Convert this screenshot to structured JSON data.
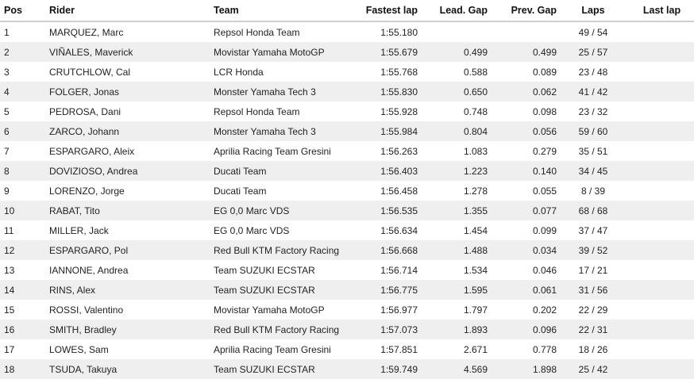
{
  "table": {
    "headers": {
      "pos": "Pos",
      "rider": "Rider",
      "team": "Team",
      "fastest_lap": "Fastest lap",
      "lead_gap": "Lead. Gap",
      "prev_gap": "Prev. Gap",
      "laps": "Laps",
      "last_lap": "Last lap"
    },
    "rows": [
      {
        "pos": "1",
        "rider": "MARQUEZ, Marc",
        "team": "Repsol Honda Team",
        "fastest_lap": "1:55.180",
        "lead_gap": "",
        "prev_gap": "",
        "laps": "49 / 54",
        "last_lap": ""
      },
      {
        "pos": "2",
        "rider": "VIÑALES, Maverick",
        "team": "Movistar Yamaha MotoGP",
        "fastest_lap": "1:55.679",
        "lead_gap": "0.499",
        "prev_gap": "0.499",
        "laps": "25 / 57",
        "last_lap": ""
      },
      {
        "pos": "3",
        "rider": "CRUTCHLOW, Cal",
        "team": "LCR Honda",
        "fastest_lap": "1:55.768",
        "lead_gap": "0.588",
        "prev_gap": "0.089",
        "laps": "23 / 48",
        "last_lap": ""
      },
      {
        "pos": "4",
        "rider": "FOLGER, Jonas",
        "team": "Monster Yamaha Tech 3",
        "fastest_lap": "1:55.830",
        "lead_gap": "0.650",
        "prev_gap": "0.062",
        "laps": "41 / 42",
        "last_lap": ""
      },
      {
        "pos": "5",
        "rider": "PEDROSA, Dani",
        "team": "Repsol Honda Team",
        "fastest_lap": "1:55.928",
        "lead_gap": "0.748",
        "prev_gap": "0.098",
        "laps": "23 / 32",
        "last_lap": ""
      },
      {
        "pos": "6",
        "rider": "ZARCO, Johann",
        "team": "Monster Yamaha Tech 3",
        "fastest_lap": "1:55.984",
        "lead_gap": "0.804",
        "prev_gap": "0.056",
        "laps": "59 / 60",
        "last_lap": ""
      },
      {
        "pos": "7",
        "rider": "ESPARGARO, Aleix",
        "team": "Aprilia Racing Team Gresini",
        "fastest_lap": "1:56.263",
        "lead_gap": "1.083",
        "prev_gap": "0.279",
        "laps": "35 / 51",
        "last_lap": ""
      },
      {
        "pos": "8",
        "rider": "DOVIZIOSO, Andrea",
        "team": "Ducati Team",
        "fastest_lap": "1:56.403",
        "lead_gap": "1.223",
        "prev_gap": "0.140",
        "laps": "34 / 45",
        "last_lap": ""
      },
      {
        "pos": "9",
        "rider": "LORENZO, Jorge",
        "team": "Ducati Team",
        "fastest_lap": "1:56.458",
        "lead_gap": "1.278",
        "prev_gap": "0.055",
        "laps": "8 / 39",
        "last_lap": ""
      },
      {
        "pos": "10",
        "rider": "RABAT, Tito",
        "team": "EG 0,0 Marc VDS",
        "fastest_lap": "1:56.535",
        "lead_gap": "1.355",
        "prev_gap": "0.077",
        "laps": "68 / 68",
        "last_lap": ""
      },
      {
        "pos": "11",
        "rider": "MILLER, Jack",
        "team": "EG 0,0 Marc VDS",
        "fastest_lap": "1:56.634",
        "lead_gap": "1.454",
        "prev_gap": "0.099",
        "laps": "37 / 47",
        "last_lap": ""
      },
      {
        "pos": "12",
        "rider": "ESPARGARO, Pol",
        "team": "Red Bull KTM Factory Racing",
        "fastest_lap": "1:56.668",
        "lead_gap": "1.488",
        "prev_gap": "0.034",
        "laps": "39 / 52",
        "last_lap": ""
      },
      {
        "pos": "13",
        "rider": "IANNONE, Andrea",
        "team": "Team SUZUKI ECSTAR",
        "fastest_lap": "1:56.714",
        "lead_gap": "1.534",
        "prev_gap": "0.046",
        "laps": "17 / 21",
        "last_lap": ""
      },
      {
        "pos": "14",
        "rider": "RINS, Alex",
        "team": "Team SUZUKI ECSTAR",
        "fastest_lap": "1:56.775",
        "lead_gap": "1.595",
        "prev_gap": "0.061",
        "laps": "31 / 56",
        "last_lap": ""
      },
      {
        "pos": "15",
        "rider": "ROSSI, Valentino",
        "team": "Movistar Yamaha MotoGP",
        "fastest_lap": "1:56.977",
        "lead_gap": "1.797",
        "prev_gap": "0.202",
        "laps": "22 / 29",
        "last_lap": ""
      },
      {
        "pos": "16",
        "rider": "SMITH, Bradley",
        "team": "Red Bull KTM Factory Racing",
        "fastest_lap": "1:57.073",
        "lead_gap": "1.893",
        "prev_gap": "0.096",
        "laps": "22 / 31",
        "last_lap": ""
      },
      {
        "pos": "17",
        "rider": "LOWES, Sam",
        "team": "Aprilia Racing Team Gresini",
        "fastest_lap": "1:57.851",
        "lead_gap": "2.671",
        "prev_gap": "0.778",
        "laps": "18 / 26",
        "last_lap": ""
      },
      {
        "pos": "18",
        "rider": "TSUDA, Takuya",
        "team": "Team SUZUKI ECSTAR",
        "fastest_lap": "1:59.749",
        "lead_gap": "4.569",
        "prev_gap": "1.898",
        "laps": "25 / 42",
        "last_lap": ""
      }
    ]
  }
}
